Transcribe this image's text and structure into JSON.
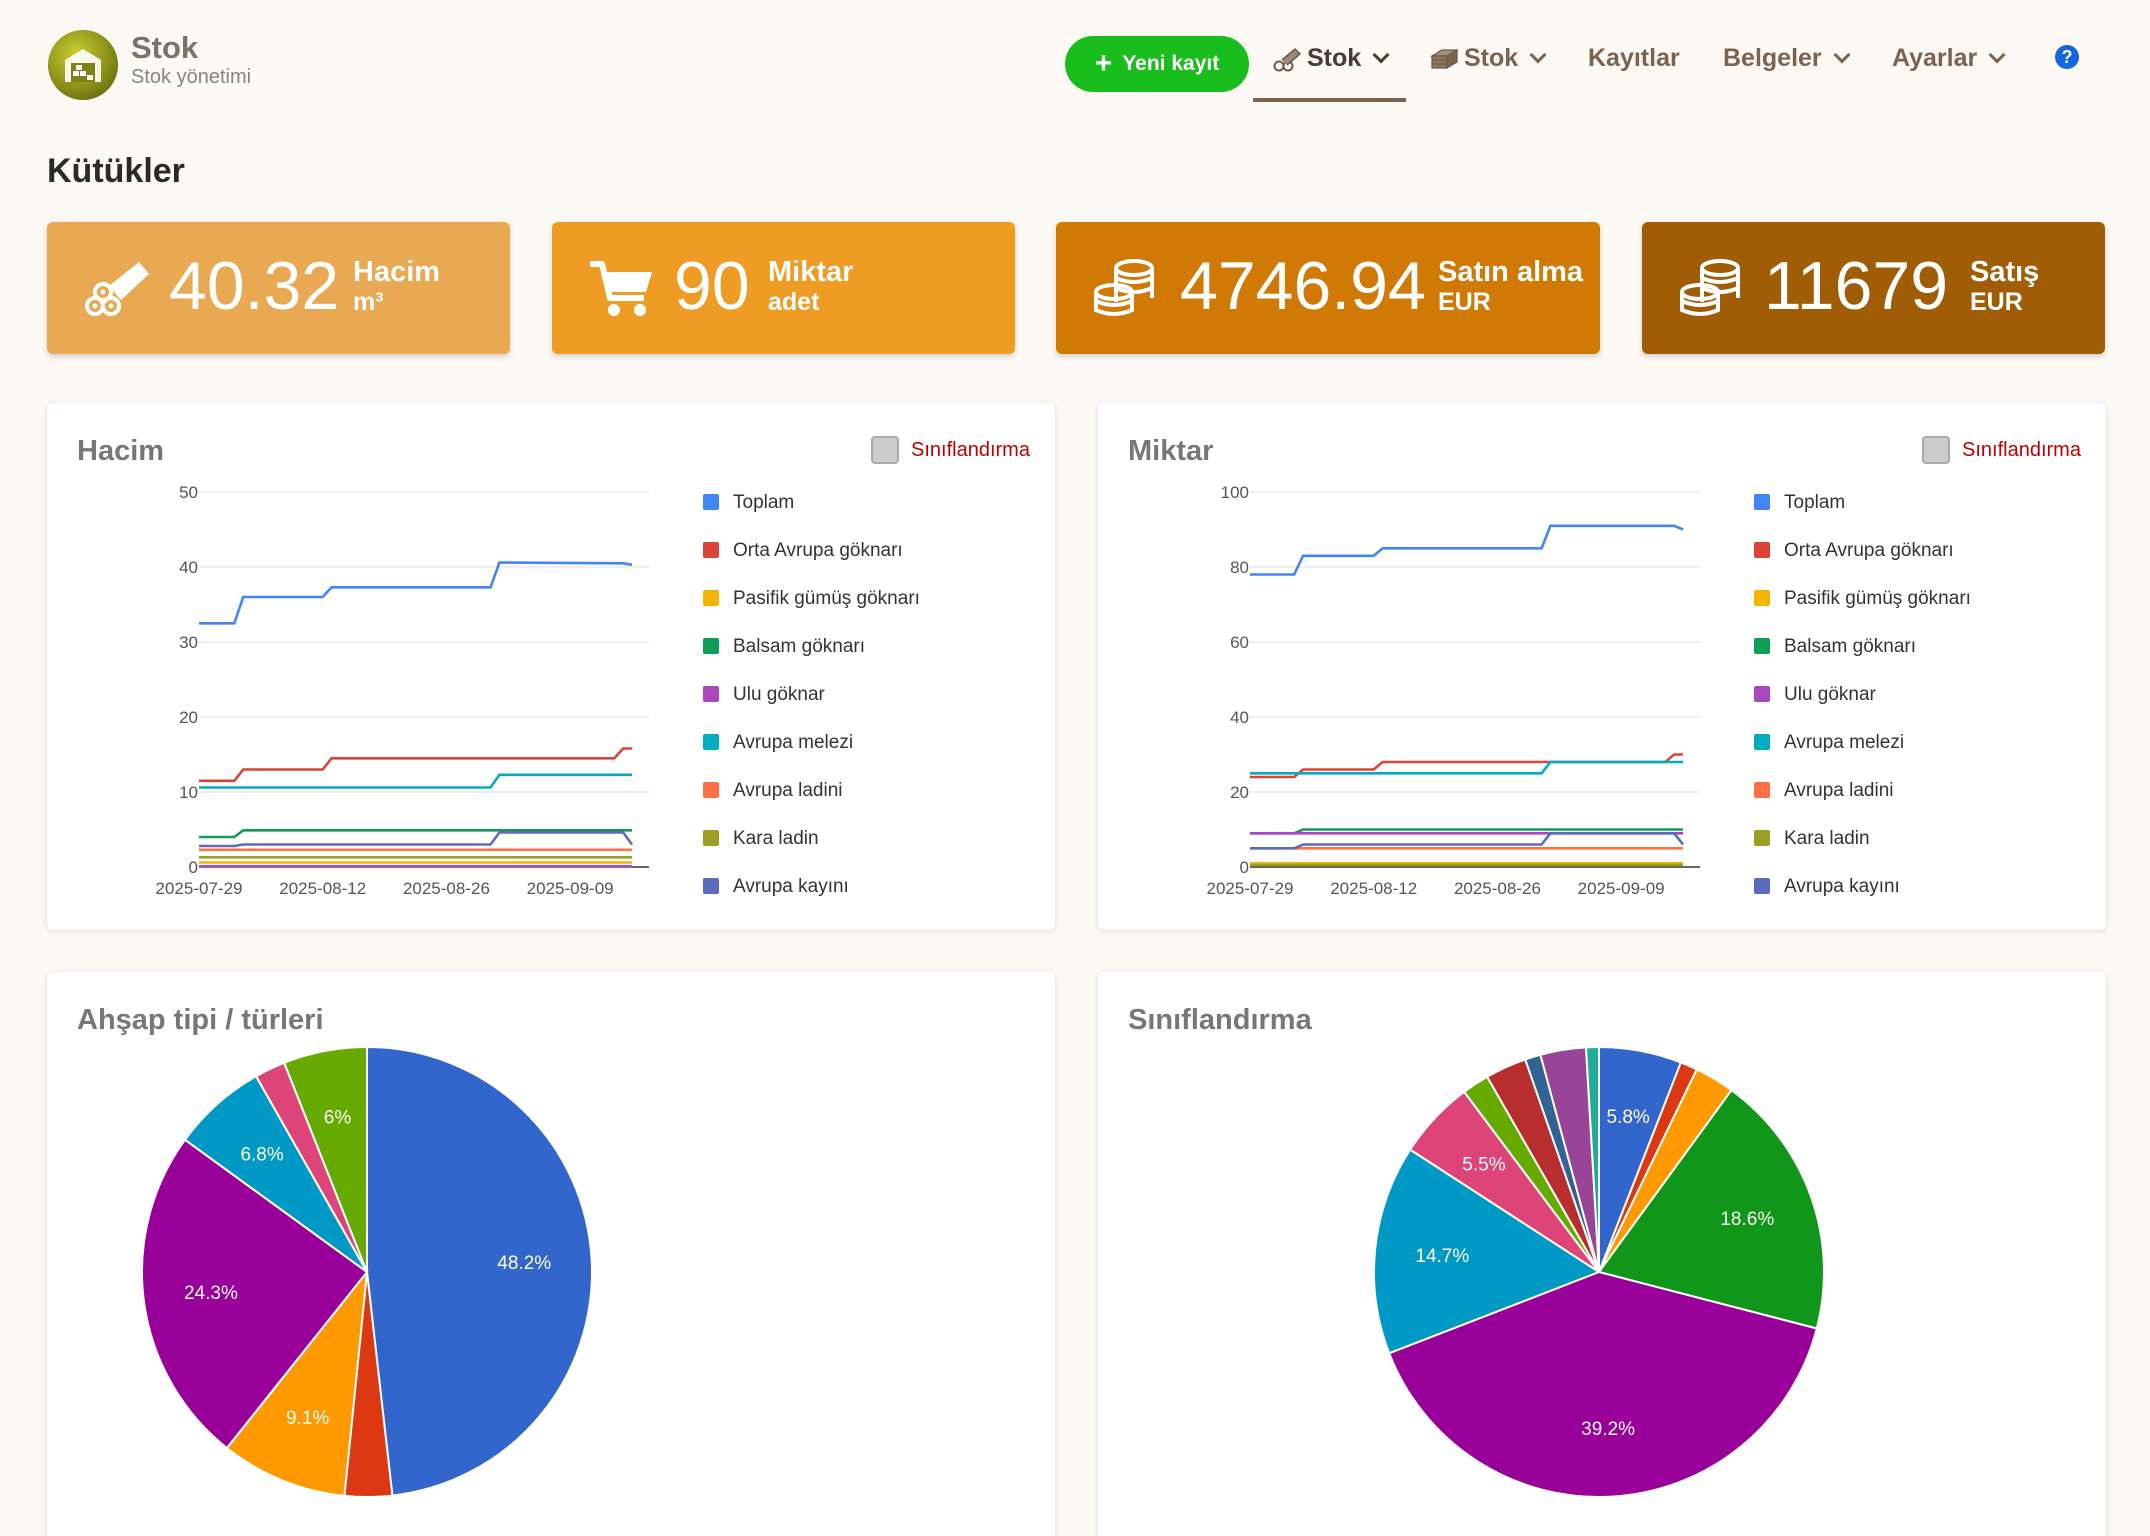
{
  "brand": {
    "title": "Stok",
    "subtitle": "Stok yönetimi"
  },
  "nav": {
    "new_record": "Yeni kayıt",
    "items": [
      {
        "label": "Stok",
        "icon": "logs-icon",
        "active": true,
        "dropdown": true
      },
      {
        "label": "Stok",
        "icon": "lumber-icon",
        "active": false,
        "dropdown": true
      },
      {
        "label": "Kayıtlar",
        "active": false,
        "dropdown": false
      },
      {
        "label": "Belgeler",
        "active": false,
        "dropdown": true
      },
      {
        "label": "Ayarlar",
        "active": false,
        "dropdown": true
      }
    ],
    "help": "?"
  },
  "page_title": "Kütükler",
  "stats": [
    {
      "value": "40.32",
      "label": "Hacim",
      "unit": "m³",
      "color": "#e8a952",
      "icon": "logs-icon"
    },
    {
      "value": "90",
      "label": "Miktar",
      "unit": "adet",
      "color": "#ef9c25",
      "icon": "cart-icon"
    },
    {
      "value": "4746.94",
      "label": "Satın alma",
      "unit": "EUR",
      "color": "#d07a05",
      "icon": "coins-icon"
    },
    {
      "value": "11679",
      "label": "Satış",
      "unit": "EUR",
      "color": "#a15d05",
      "icon": "coins-icon"
    }
  ],
  "classify_label": "Sınıflandırma",
  "legend": [
    {
      "name": "Toplam",
      "color": "#4285f4"
    },
    {
      "name": "Orta Avrupa göknarı",
      "color": "#db4437"
    },
    {
      "name": "Pasifik gümüş göknarı",
      "color": "#f4b400"
    },
    {
      "name": "Balsam göknarı",
      "color": "#0f9d58"
    },
    {
      "name": "Ulu göknar",
      "color": "#ab47bc"
    },
    {
      "name": "Avrupa melezi",
      "color": "#00acc1"
    },
    {
      "name": "Avrupa ladini",
      "color": "#ff7043"
    },
    {
      "name": "Kara ladin",
      "color": "#9e9d24"
    },
    {
      "name": "Avrupa kayını",
      "color": "#5c6bc0"
    }
  ],
  "chart_data": [
    {
      "type": "line",
      "title": "Hacim",
      "x_ticks": [
        "2025-07-29",
        "2025-08-12",
        "2025-08-26",
        "2025-09-09"
      ],
      "x_range": [
        "2025-07-29",
        "2025-09-16"
      ],
      "ylim": [
        0,
        50
      ],
      "y_ticks": [
        0,
        10,
        20,
        30,
        40,
        50
      ],
      "grid": true,
      "legend_position": "right",
      "series": [
        {
          "name": "Toplam",
          "color": "#4285f4",
          "points": [
            [
              "2025-07-29",
              32.5
            ],
            [
              "2025-08-02",
              32.5
            ],
            [
              "2025-08-03",
              36
            ],
            [
              "2025-08-12",
              36
            ],
            [
              "2025-08-13",
              37.3
            ],
            [
              "2025-08-31",
              37.3
            ],
            [
              "2025-09-01",
              40.6
            ],
            [
              "2025-09-15",
              40.5
            ],
            [
              "2025-09-16",
              40.3
            ]
          ]
        },
        {
          "name": "Orta Avrupa göknarı",
          "color": "#db4437",
          "points": [
            [
              "2025-07-29",
              11.5
            ],
            [
              "2025-08-02",
              11.5
            ],
            [
              "2025-08-03",
              13
            ],
            [
              "2025-08-12",
              13
            ],
            [
              "2025-08-13",
              14.5
            ],
            [
              "2025-09-14",
              14.5
            ],
            [
              "2025-09-15",
              15.8
            ],
            [
              "2025-09-16",
              15.8
            ]
          ]
        },
        {
          "name": "Pasifik gümüş göknarı",
          "color": "#f4b400",
          "points": [
            [
              "2025-07-29",
              0.6
            ],
            [
              "2025-09-16",
              0.6
            ]
          ]
        },
        {
          "name": "Balsam göknarı",
          "color": "#0f9d58",
          "points": [
            [
              "2025-07-29",
              4
            ],
            [
              "2025-08-02",
              4
            ],
            [
              "2025-08-03",
              4.9
            ],
            [
              "2025-09-16",
              4.9
            ]
          ]
        },
        {
          "name": "Ulu göknar",
          "color": "#ab47bc",
          "points": [
            [
              "2025-07-29",
              0.1
            ],
            [
              "2025-09-16",
              0.1
            ]
          ]
        },
        {
          "name": "Avrupa melezi",
          "color": "#00acc1",
          "points": [
            [
              "2025-07-29",
              10.6
            ],
            [
              "2025-08-31",
              10.6
            ],
            [
              "2025-09-01",
              12.3
            ],
            [
              "2025-09-16",
              12.3
            ]
          ]
        },
        {
          "name": "Avrupa ladini",
          "color": "#ff7043",
          "points": [
            [
              "2025-07-29",
              2.3
            ],
            [
              "2025-09-16",
              2.3
            ]
          ]
        },
        {
          "name": "Kara ladin",
          "color": "#9e9d24",
          "points": [
            [
              "2025-07-29",
              1.3
            ],
            [
              "2025-09-16",
              1.3
            ]
          ]
        },
        {
          "name": "Avrupa kayını",
          "color": "#5c6bc0",
          "points": [
            [
              "2025-07-29",
              2.8
            ],
            [
              "2025-08-02",
              2.8
            ],
            [
              "2025-08-03",
              3
            ],
            [
              "2025-08-31",
              3
            ],
            [
              "2025-09-01",
              4.6
            ],
            [
              "2025-09-15",
              4.6
            ],
            [
              "2025-09-16",
              3
            ]
          ]
        }
      ]
    },
    {
      "type": "line",
      "title": "Miktar",
      "x_ticks": [
        "2025-07-29",
        "2025-08-12",
        "2025-08-26",
        "2025-09-09"
      ],
      "x_range": [
        "2025-07-29",
        "2025-09-16"
      ],
      "ylim": [
        0,
        100
      ],
      "y_ticks": [
        0,
        20,
        40,
        60,
        80,
        100
      ],
      "grid": true,
      "legend_position": "right",
      "series": [
        {
          "name": "Toplam",
          "color": "#4285f4",
          "points": [
            [
              "2025-07-29",
              78
            ],
            [
              "2025-08-03",
              78
            ],
            [
              "2025-08-04",
              83
            ],
            [
              "2025-08-12",
              83
            ],
            [
              "2025-08-13",
              85
            ],
            [
              "2025-08-31",
              85
            ],
            [
              "2025-09-01",
              91
            ],
            [
              "2025-09-15",
              91
            ],
            [
              "2025-09-16",
              90
            ]
          ]
        },
        {
          "name": "Orta Avrupa göknarı",
          "color": "#db4437",
          "points": [
            [
              "2025-07-29",
              24
            ],
            [
              "2025-08-03",
              24
            ],
            [
              "2025-08-04",
              26
            ],
            [
              "2025-08-12",
              26
            ],
            [
              "2025-08-13",
              28
            ],
            [
              "2025-09-14",
              28
            ],
            [
              "2025-09-15",
              30
            ],
            [
              "2025-09-16",
              30
            ]
          ]
        },
        {
          "name": "Pasifik gümüş göknarı",
          "color": "#f4b400",
          "points": [
            [
              "2025-07-29",
              1
            ],
            [
              "2025-09-16",
              1
            ]
          ]
        },
        {
          "name": "Balsam göknarı",
          "color": "#0f9d58",
          "points": [
            [
              "2025-07-29",
              9
            ],
            [
              "2025-08-03",
              9
            ],
            [
              "2025-08-04",
              10
            ],
            [
              "2025-09-16",
              10
            ]
          ]
        },
        {
          "name": "Ulu göknar",
          "color": "#ab47bc",
          "points": [
            [
              "2025-07-29",
              9
            ],
            [
              "2025-09-16",
              9
            ]
          ]
        },
        {
          "name": "Avrupa melezi",
          "color": "#00acc1",
          "points": [
            [
              "2025-07-29",
              25
            ],
            [
              "2025-08-31",
              25
            ],
            [
              "2025-09-01",
              28
            ],
            [
              "2025-09-16",
              28
            ]
          ]
        },
        {
          "name": "Avrupa ladini",
          "color": "#ff7043",
          "points": [
            [
              "2025-07-29",
              5
            ],
            [
              "2025-09-16",
              5
            ]
          ]
        },
        {
          "name": "Kara ladin",
          "color": "#9e9d24",
          "points": [
            [
              "2025-07-29",
              0.5
            ],
            [
              "2025-09-16",
              0.5
            ]
          ]
        },
        {
          "name": "Avrupa kayını",
          "color": "#5c6bc0",
          "points": [
            [
              "2025-07-29",
              5
            ],
            [
              "2025-08-03",
              5
            ],
            [
              "2025-08-04",
              6
            ],
            [
              "2025-08-31",
              6
            ],
            [
              "2025-09-01",
              9
            ],
            [
              "2025-09-15",
              9
            ],
            [
              "2025-09-16",
              6
            ]
          ]
        }
      ]
    },
    {
      "type": "pie",
      "title": "Ahşap tipi / türleri",
      "slices": [
        {
          "value": 48.2,
          "label": "48.2%",
          "color": "#3366cc"
        },
        {
          "value": 3.4,
          "label": "",
          "color": "#dc3912"
        },
        {
          "value": 9.1,
          "label": "9.1%",
          "color": "#ff9900"
        },
        {
          "value": 24.3,
          "label": "24.3%",
          "color": "#990099"
        },
        {
          "value": 6.8,
          "label": "6.8%",
          "color": "#0099c6"
        },
        {
          "value": 2.2,
          "label": "",
          "color": "#dd4477"
        },
        {
          "value": 6.0,
          "label": "6%",
          "color": "#66aa00"
        }
      ]
    },
    {
      "type": "pie",
      "title": "Sınıflandırma",
      "slices": [
        {
          "value": 5.8,
          "label": "5.8%",
          "color": "#3366cc"
        },
        {
          "value": 1.2,
          "label": "",
          "color": "#dc3912"
        },
        {
          "value": 2.8,
          "label": "",
          "color": "#ff9900"
        },
        {
          "value": 18.6,
          "label": "18.6%",
          "color": "#109618"
        },
        {
          "value": 39.2,
          "label": "39.2%",
          "color": "#990099"
        },
        {
          "value": 14.7,
          "label": "14.7%",
          "color": "#0099c6"
        },
        {
          "value": 5.5,
          "label": "5.5%",
          "color": "#dd4477"
        },
        {
          "value": 1.9,
          "label": "",
          "color": "#66aa00"
        },
        {
          "value": 2.9,
          "label": "",
          "color": "#b82e2e"
        },
        {
          "value": 1.1,
          "label": "",
          "color": "#316395"
        },
        {
          "value": 3.2,
          "label": "",
          "color": "#994499"
        },
        {
          "value": 0.9,
          "label": "",
          "color": "#22aa99"
        }
      ]
    }
  ]
}
